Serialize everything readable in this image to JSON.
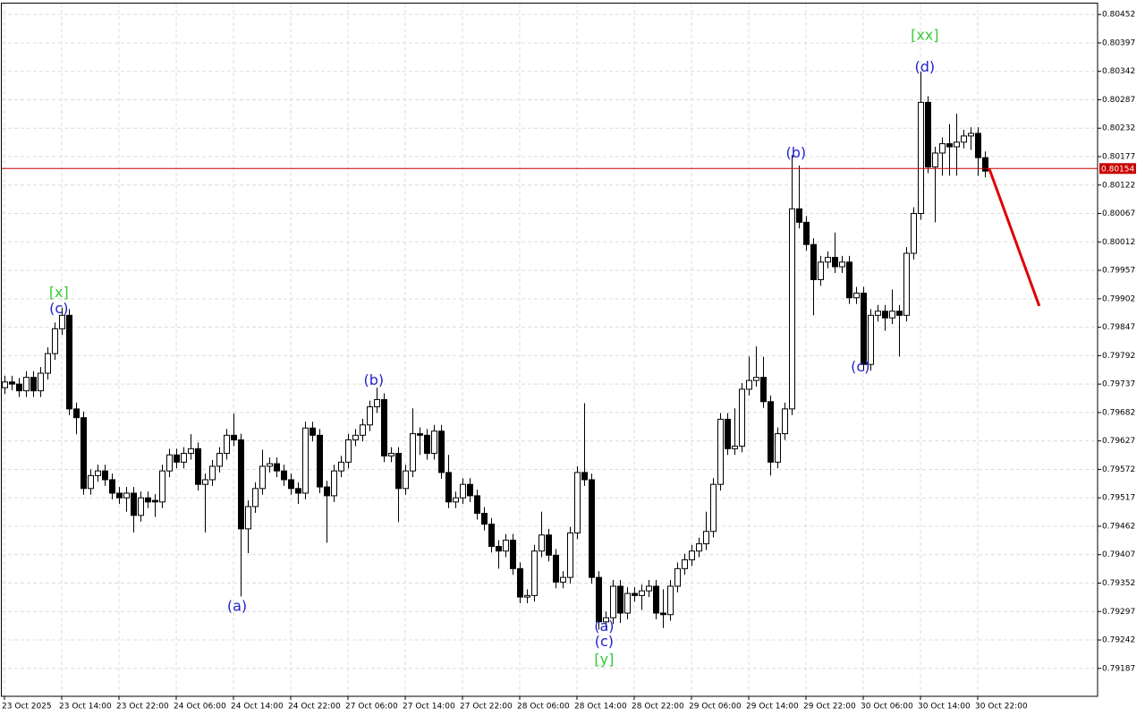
{
  "chart_data": {
    "type": "candlestick",
    "ylim": [
      0.79133,
      0.8048
    ],
    "xlim": [
      -0.625,
      152.75
    ],
    "yticks": [
      0.80452,
      0.80397,
      0.80342,
      0.80287,
      0.80232,
      0.80177,
      0.80122,
      0.80067,
      0.80012,
      0.79957,
      0.79902,
      0.79847,
      0.79792,
      0.79737,
      0.79682,
      0.79627,
      0.79572,
      0.79517,
      0.79462,
      0.79407,
      0.79352,
      0.79297,
      0.79242,
      0.79187
    ],
    "xticks": [
      {
        "value": 0,
        "label": "23 Oct 2025"
      },
      {
        "value": 8,
        "label": "23 Oct 14:00"
      },
      {
        "value": 16,
        "label": "23 Oct 22:00"
      },
      {
        "value": 24,
        "label": "24 Oct 06:00"
      },
      {
        "value": 32,
        "label": "24 Oct 14:00"
      },
      {
        "value": 40,
        "label": "24 Oct 22:00"
      },
      {
        "value": 48,
        "label": "27 Oct 06:00"
      },
      {
        "value": 56,
        "label": "27 Oct 14:00"
      },
      {
        "value": 64,
        "label": "27 Oct 22:00"
      },
      {
        "value": 72,
        "label": "28 Oct 06:00"
      },
      {
        "value": 80,
        "label": "28 Oct 14:00"
      },
      {
        "value": 88,
        "label": "28 Oct 22:00"
      },
      {
        "value": 96,
        "label": "29 Oct 06:00"
      },
      {
        "value": 104,
        "label": "29 Oct 14:00"
      },
      {
        "value": 112,
        "label": "29 Oct 22:00"
      },
      {
        "value": 120,
        "label": "30 Oct 06:00"
      },
      {
        "value": 128,
        "label": "30 Oct 14:00"
      },
      {
        "value": 136,
        "label": "30 Oct 22:00"
      }
    ],
    "grid": true,
    "up_color": "#ffffff",
    "down_color": "#000000",
    "open": [
      0.7973,
      0.79741,
      0.79737,
      0.79724,
      0.7975,
      0.79724,
      0.79758,
      0.79796,
      0.79844,
      0.7987,
      0.79689,
      0.79672,
      0.79535,
      0.7956,
      0.79569,
      0.79552,
      0.79526,
      0.79517,
      0.79526,
      0.79483,
      0.79517,
      0.79512,
      0.79509,
      0.79569,
      0.796,
      0.79586,
      0.79603,
      0.79612,
      0.79543,
      0.79552,
      0.79578,
      0.79603,
      0.79638,
      0.79629,
      0.79457,
      0.795,
      0.79535,
      0.79578,
      0.79583,
      0.79569,
      0.79552,
      0.79535,
      0.79526,
      0.79652,
      0.79638,
      0.79538,
      0.79521,
      0.79569,
      0.79586,
      0.79629,
      0.79638,
      0.79658,
      0.79693,
      0.79707,
      0.79598,
      0.79603,
      0.79535,
      0.79569,
      0.79641,
      0.79638,
      0.79603,
      0.79646,
      0.79566,
      0.79509,
      0.79517,
      0.79543,
      0.79521,
      0.79487,
      0.79466,
      0.79423,
      0.79414,
      0.79435,
      0.7938,
      0.79325,
      0.79328,
      0.79414,
      0.79445,
      0.79406,
      0.79354,
      0.79363,
      0.79449,
      0.79566,
      0.79552,
      0.79363,
      0.79277,
      0.79285,
      0.79346,
      0.79294,
      0.79332,
      0.79328,
      0.79337,
      0.79346,
      0.79294,
      0.79291,
      0.79346,
      0.7938,
      0.79397,
      0.79414,
      0.79428,
      0.79452,
      0.79543,
      0.79669,
      0.79612,
      0.79617,
      0.79727,
      0.79744,
      0.7975,
      0.79703,
      0.79586,
      0.79641,
      0.79689,
      0.80076,
      0.8005,
      0.80007,
      0.79939,
      0.79973,
      0.79982,
      0.79964,
      0.79973,
      0.79904,
      0.79913,
      0.79775,
      0.7987,
      0.79878,
      0.79865,
      0.79878,
      0.7987,
      0.7999,
      0.80067,
      0.80282,
      0.80157,
      0.80184,
      0.80202,
      0.80196,
      0.80205,
      0.80217,
      0.80222,
      0.80175
    ],
    "high": [
      0.79753,
      0.79753,
      0.79749,
      0.79762,
      0.79762,
      0.7977,
      0.79808,
      0.79856,
      0.79885,
      0.79882,
      0.79701,
      0.79684,
      0.79572,
      0.79581,
      0.79581,
      0.79564,
      0.79538,
      0.79538,
      0.79538,
      0.79529,
      0.79529,
      0.79524,
      0.79581,
      0.79612,
      0.79612,
      0.79615,
      0.7964,
      0.79624,
      0.79564,
      0.7959,
      0.79615,
      0.7965,
      0.7968,
      0.79641,
      0.79512,
      0.79547,
      0.7961,
      0.79595,
      0.79595,
      0.79581,
      0.79564,
      0.79547,
      0.79664,
      0.79664,
      0.7965,
      0.7955,
      0.79581,
      0.79598,
      0.79641,
      0.7965,
      0.7967,
      0.79705,
      0.7973,
      0.79719,
      0.79615,
      0.79615,
      0.79581,
      0.7969,
      0.79653,
      0.7965,
      0.79658,
      0.79658,
      0.796,
      0.79529,
      0.79555,
      0.79555,
      0.79533,
      0.79499,
      0.79478,
      0.79435,
      0.79447,
      0.79447,
      0.79392,
      0.7934,
      0.79426,
      0.7949,
      0.79457,
      0.79418,
      0.79375,
      0.79461,
      0.79578,
      0.797,
      0.79564,
      0.79375,
      0.79297,
      0.79358,
      0.79358,
      0.79344,
      0.79344,
      0.79349,
      0.79358,
      0.79358,
      0.7934,
      0.79358,
      0.79392,
      0.79409,
      0.79426,
      0.7944,
      0.7949,
      0.79555,
      0.79681,
      0.79681,
      0.7969,
      0.79739,
      0.7979,
      0.7981,
      0.7979,
      0.79715,
      0.79653,
      0.79701,
      0.8018,
      0.8016,
      0.80062,
      0.80019,
      0.79985,
      0.79994,
      0.8003,
      0.79985,
      0.79985,
      0.79925,
      0.79925,
      0.79882,
      0.7989,
      0.7989,
      0.7992,
      0.7989,
      0.80002,
      0.80079,
      0.80342,
      0.80294,
      0.80196,
      0.80214,
      0.8024,
      0.8026,
      0.80229,
      0.80234,
      0.80234,
      0.80187
    ],
    "low": [
      0.79718,
      0.79725,
      0.79712,
      0.79712,
      0.79712,
      0.79712,
      0.79746,
      0.79784,
      0.79832,
      0.79677,
      0.7964,
      0.79523,
      0.79523,
      0.79548,
      0.7954,
      0.79514,
      0.79505,
      0.7949,
      0.7945,
      0.79471,
      0.79497,
      0.7948,
      0.79497,
      0.79557,
      0.79574,
      0.79574,
      0.79591,
      0.79531,
      0.7945,
      0.7954,
      0.79566,
      0.79591,
      0.79617,
      0.79326,
      0.7941,
      0.79488,
      0.79523,
      0.79566,
      0.79557,
      0.7954,
      0.79523,
      0.79505,
      0.79514,
      0.79626,
      0.79526,
      0.7943,
      0.79509,
      0.79557,
      0.79574,
      0.79617,
      0.79626,
      0.79646,
      0.79681,
      0.79586,
      0.79586,
      0.7947,
      0.79523,
      0.79557,
      0.796,
      0.79591,
      0.79591,
      0.79554,
      0.79497,
      0.79497,
      0.79505,
      0.79509,
      0.79475,
      0.79454,
      0.79411,
      0.7938,
      0.79402,
      0.79368,
      0.79313,
      0.79313,
      0.79316,
      0.79402,
      0.79394,
      0.79342,
      0.79342,
      0.79351,
      0.79437,
      0.7954,
      0.79351,
      0.79262,
      0.79265,
      0.79273,
      0.79275,
      0.79282,
      0.79316,
      0.793,
      0.79325,
      0.79282,
      0.79265,
      0.79279,
      0.79334,
      0.79368,
      0.79385,
      0.79402,
      0.79416,
      0.7944,
      0.79531,
      0.796,
      0.796,
      0.79605,
      0.79715,
      0.79732,
      0.79691,
      0.7956,
      0.79574,
      0.79629,
      0.79677,
      0.80038,
      0.79995,
      0.7987,
      0.79927,
      0.79961,
      0.79952,
      0.79952,
      0.79892,
      0.79892,
      0.79763,
      0.79763,
      0.79858,
      0.7984,
      0.79853,
      0.7979,
      0.79858,
      0.79978,
      0.80055,
      0.80145,
      0.8005,
      0.8014,
      0.8014,
      0.8014,
      0.80193,
      0.8019,
      0.8014,
      0.80137
    ],
    "close": [
      0.79741,
      0.79737,
      0.79724,
      0.7975,
      0.79724,
      0.79758,
      0.79796,
      0.79844,
      0.7987,
      0.79689,
      0.79672,
      0.79535,
      0.7956,
      0.79569,
      0.79552,
      0.79526,
      0.79517,
      0.79526,
      0.79483,
      0.79517,
      0.79509,
      0.79509,
      0.79569,
      0.796,
      0.79586,
      0.79603,
      0.79612,
      0.79543,
      0.79552,
      0.79578,
      0.79603,
      0.79638,
      0.79629,
      0.79457,
      0.795,
      0.79535,
      0.79578,
      0.79583,
      0.79569,
      0.79552,
      0.79535,
      0.79526,
      0.79652,
      0.79638,
      0.79538,
      0.79521,
      0.79569,
      0.79586,
      0.79629,
      0.79638,
      0.79658,
      0.79693,
      0.79707,
      0.79598,
      0.79603,
      0.79535,
      0.79569,
      0.79641,
      0.79638,
      0.79603,
      0.79646,
      0.79566,
      0.79509,
      0.79517,
      0.79543,
      0.79521,
      0.79487,
      0.79466,
      0.79423,
      0.79414,
      0.79435,
      0.7938,
      0.79325,
      0.79328,
      0.79414,
      0.79445,
      0.79406,
      0.79354,
      0.79363,
      0.79449,
      0.79566,
      0.79552,
      0.79363,
      0.79277,
      0.79285,
      0.79346,
      0.79294,
      0.79332,
      0.79328,
      0.79337,
      0.79346,
      0.79294,
      0.79291,
      0.79346,
      0.7938,
      0.79397,
      0.79414,
      0.79428,
      0.79452,
      0.79543,
      0.79669,
      0.79612,
      0.79617,
      0.79727,
      0.79744,
      0.7975,
      0.79703,
      0.79586,
      0.79641,
      0.79689,
      0.80076,
      0.8005,
      0.80007,
      0.79939,
      0.79973,
      0.79982,
      0.79964,
      0.79973,
      0.79904,
      0.79913,
      0.79775,
      0.7987,
      0.79878,
      0.79865,
      0.79878,
      0.7987,
      0.7999,
      0.80067,
      0.80282,
      0.80157,
      0.80184,
      0.80202,
      0.80196,
      0.80205,
      0.80217,
      0.80222,
      0.80175,
      0.80149
    ],
    "current_price": {
      "value": 0.80154,
      "color": "#c80000"
    },
    "forecast": {
      "x": [
        137.6,
        144.6
      ],
      "y": [
        0.80154,
        0.79888
      ],
      "color": "#e00000"
    },
    "annotations": [
      {
        "text": "[x]",
        "x": 7.6,
        "y": 0.79913,
        "color": "#33cc33"
      },
      {
        "text": "(c)",
        "x": 7.6,
        "y": 0.79882,
        "color": "#2222cc"
      },
      {
        "text": "(a)",
        "x": 32.5,
        "y": 0.79306,
        "color": "#2222cc"
      },
      {
        "text": "(b)",
        "x": 51.6,
        "y": 0.79743,
        "color": "#2222cc"
      },
      {
        "text": "(a)",
        "x": 83.8,
        "y": 0.79267,
        "color": "#2222cc"
      },
      {
        "text": "(c)",
        "x": 83.8,
        "y": 0.79238,
        "color": "#2222cc"
      },
      {
        "text": "[y]",
        "x": 83.8,
        "y": 0.79203,
        "color": "#33cc33"
      },
      {
        "text": "(b)",
        "x": 110.6,
        "y": 0.80183,
        "color": "#2222cc"
      },
      {
        "text": "(c)",
        "x": 119.6,
        "y": 0.79769,
        "color": "#2222cc"
      },
      {
        "text": "(d)",
        "x": 128.6,
        "y": 0.80349,
        "color": "#2222cc"
      },
      {
        "text": "[xx]",
        "x": 128.6,
        "y": 0.80411,
        "color": "#33cc33"
      }
    ]
  }
}
